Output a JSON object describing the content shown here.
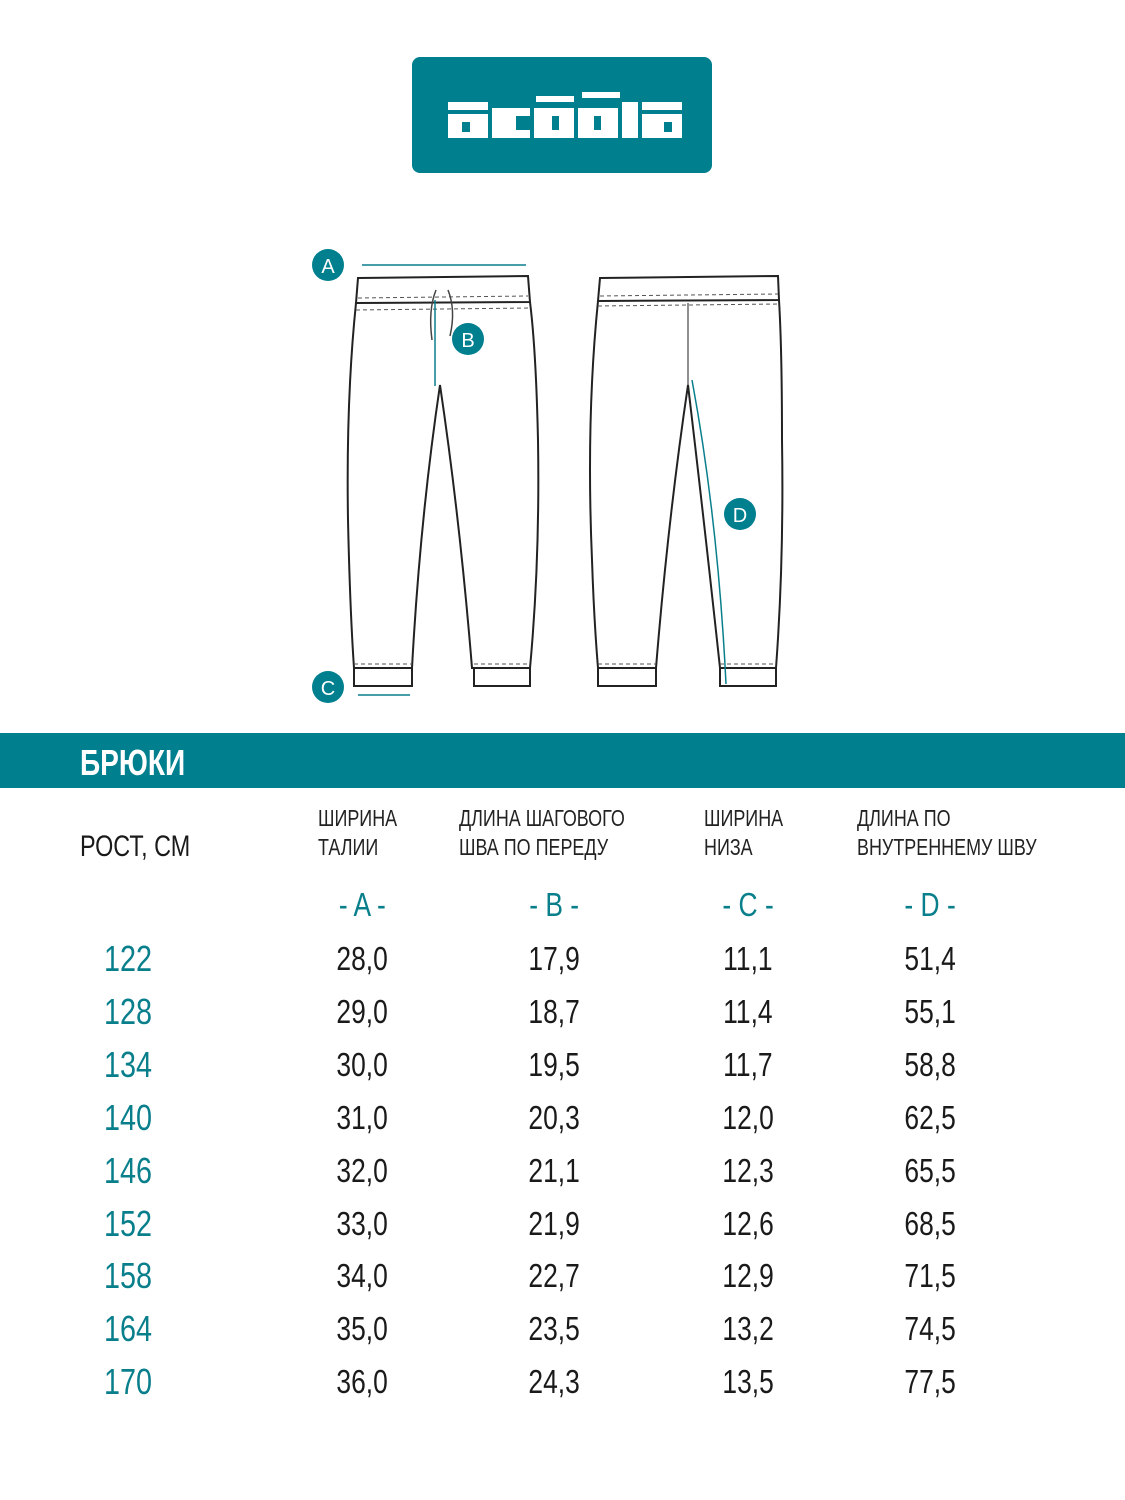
{
  "brand": {
    "logo_text": "acoola",
    "color": "#007f8f"
  },
  "diagram": {
    "markers": [
      "A",
      "B",
      "C",
      "D"
    ]
  },
  "section_title": "БРЮКИ",
  "table": {
    "row_header": "РОСТ, СМ",
    "columns": [
      {
        "line1": "ШИРИНА",
        "line2": "ТАЛИИ",
        "letter": "- A -"
      },
      {
        "line1": "ДЛИНА ШАГОВОГО",
        "line2": "ШВА ПО ПЕРЕДУ",
        "letter": "- B -"
      },
      {
        "line1": "ШИРИНА",
        "line2": "НИЗА",
        "letter": "- C -"
      },
      {
        "line1": "ДЛИНА ПО",
        "line2": "ВНУТРЕННЕМУ ШВУ",
        "letter": "- D -"
      }
    ],
    "rows": [
      {
        "height": "122",
        "values": [
          "28,0",
          "17,9",
          "11,1",
          "51,4"
        ]
      },
      {
        "height": "128",
        "values": [
          "29,0",
          "18,7",
          "11,4",
          "55,1"
        ]
      },
      {
        "height": "134",
        "values": [
          "30,0",
          "19,5",
          "11,7",
          "58,8"
        ]
      },
      {
        "height": "140",
        "values": [
          "31,0",
          "20,3",
          "12,0",
          "62,5"
        ]
      },
      {
        "height": "146",
        "values": [
          "32,0",
          "21,1",
          "12,3",
          "65,5"
        ]
      },
      {
        "height": "152",
        "values": [
          "33,0",
          "21,9",
          "12,6",
          "68,5"
        ]
      },
      {
        "height": "158",
        "values": [
          "34,0",
          "22,7",
          "12,9",
          "71,5"
        ]
      },
      {
        "height": "164",
        "values": [
          "35,0",
          "23,5",
          "13,2",
          "74,5"
        ]
      },
      {
        "height": "170",
        "values": [
          "36,0",
          "24,3",
          "13,5",
          "77,5"
        ]
      }
    ]
  }
}
